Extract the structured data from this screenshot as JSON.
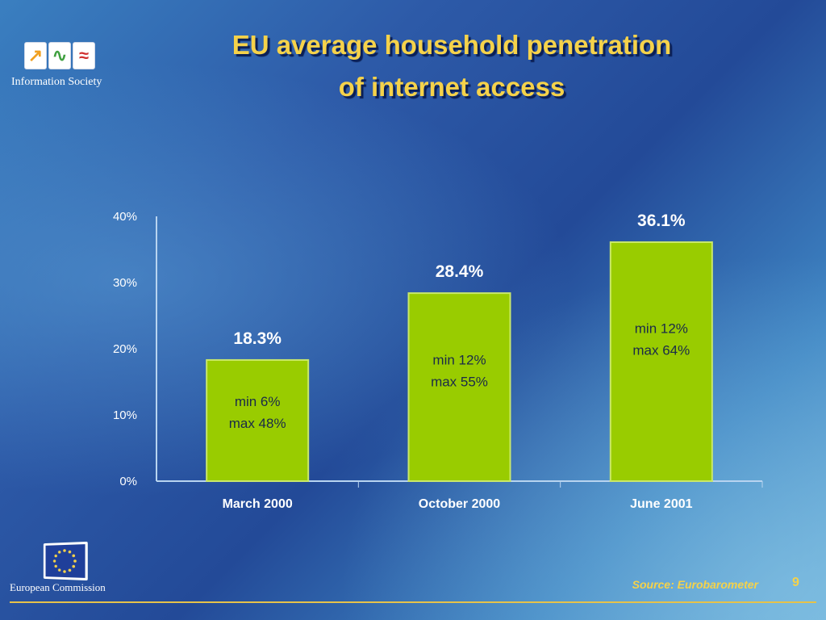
{
  "slide": {
    "title_line1": "EU average household penetration",
    "title_line2": "of internet access",
    "logo_text": "Information Society",
    "ec_text": "European Commission",
    "source": "Source: Eurobarometer",
    "page_number": "9"
  },
  "colors": {
    "bar": "#99cc00",
    "bar_border": "#c9e86a",
    "axis": "#b8d4f0",
    "title": "#f5d24a"
  },
  "chart_data": {
    "type": "bar",
    "categories": [
      "March 2000",
      "October 2000",
      "June 2001"
    ],
    "values": [
      18.3,
      28.4,
      36.1
    ],
    "value_labels": [
      "18.3%",
      "28.4%",
      "36.1%"
    ],
    "bar_notes": [
      [
        "min 6%",
        "max 48%"
      ],
      [
        "min 12%",
        "max 55%"
      ],
      [
        "min 12%",
        "max 64%"
      ]
    ],
    "yticks": [
      0,
      10,
      20,
      30,
      40
    ],
    "ytick_labels": [
      "0%",
      "10%",
      "20%",
      "30%",
      "40%"
    ],
    "ylim": [
      0,
      40
    ],
    "title": "EU average household penetration of internet access",
    "xlabel": "",
    "ylabel": "",
    "grid": false,
    "legend": "none"
  }
}
